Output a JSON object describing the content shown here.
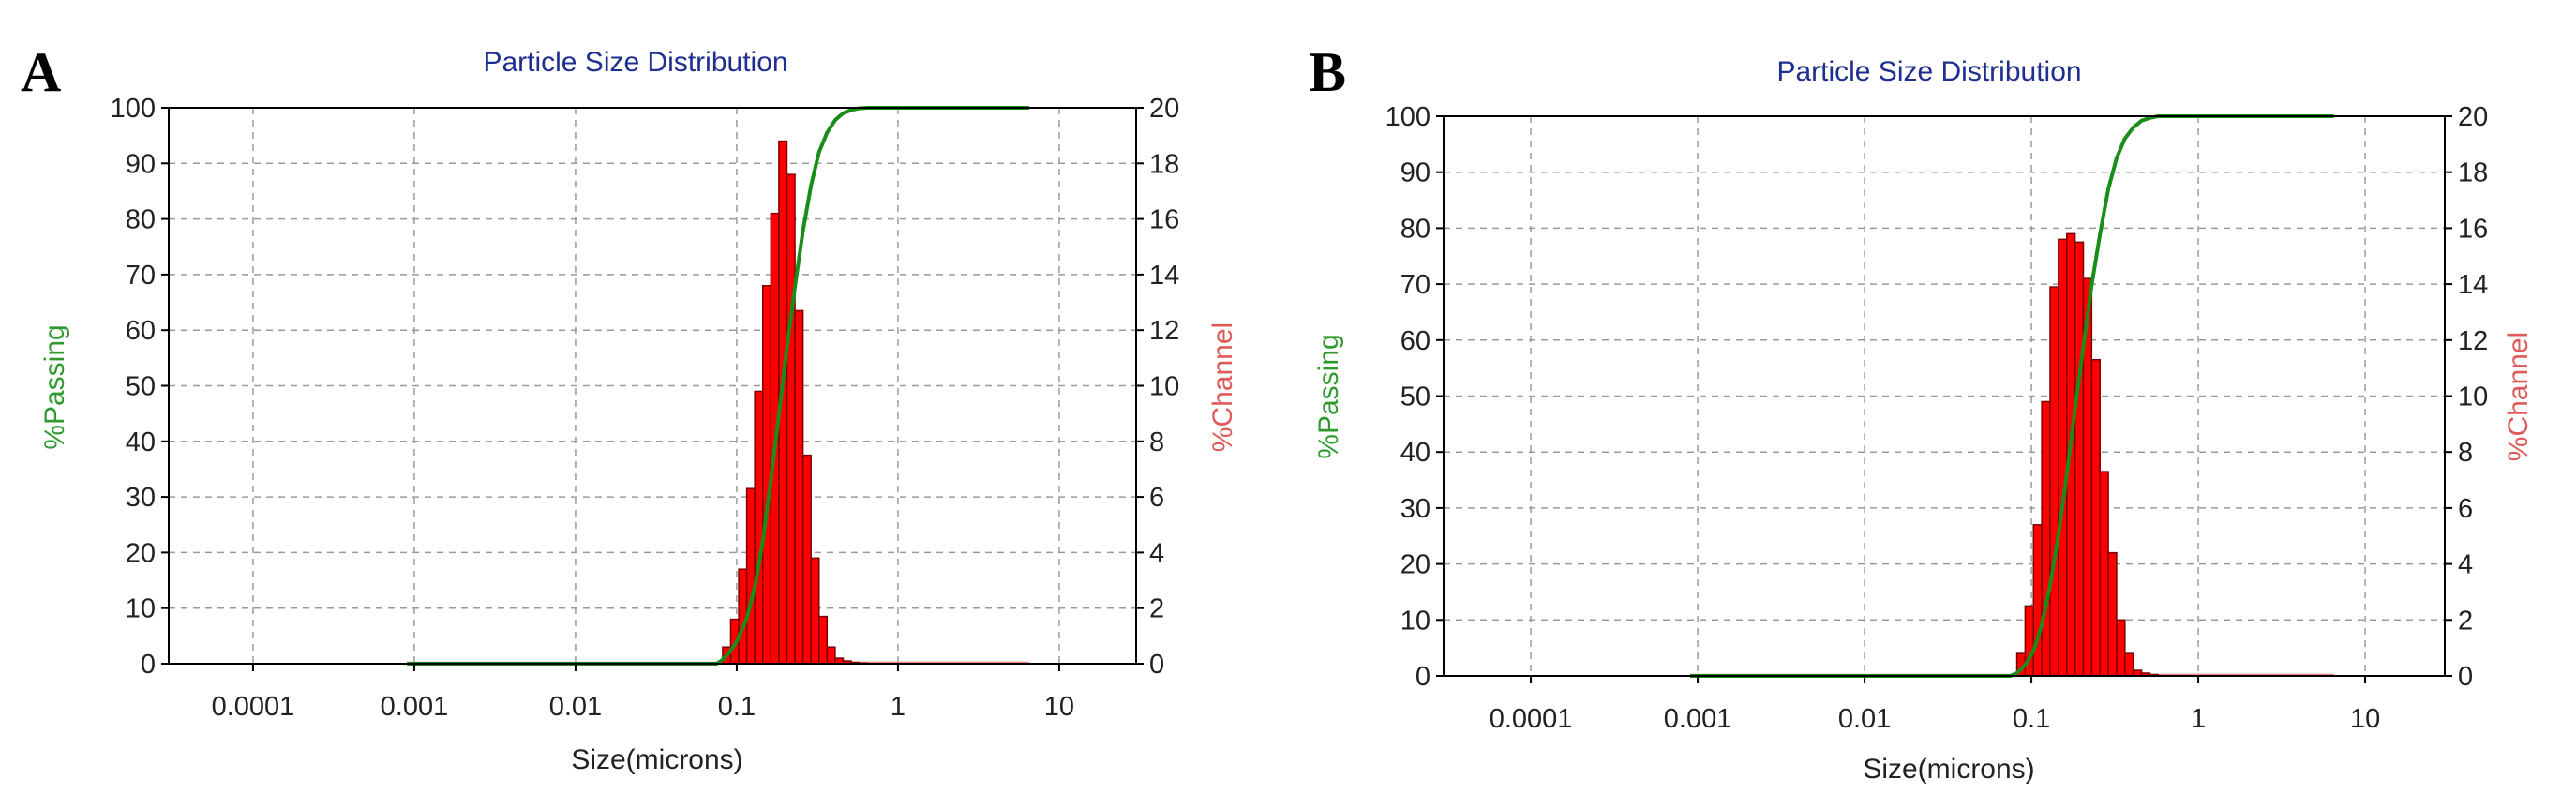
{
  "chart_data": [
    {
      "type": "bar",
      "panel_label": "A",
      "title": "Particle Size Distribution",
      "xlabel": "Size(microns)",
      "ylabel_left": "%Passing",
      "ylabel_right": "%Channel",
      "x_scale": "log",
      "xlim": [
        3e-05,
        30
      ],
      "x_ticks": [
        0.0001,
        0.001,
        0.01,
        0.1,
        1,
        10
      ],
      "x_tick_labels": [
        "0.0001",
        "0.001",
        "0.01",
        "0.1",
        "1",
        "10"
      ],
      "ylim_left": [
        0,
        100
      ],
      "y_ticks_left": [
        0,
        10,
        20,
        30,
        40,
        50,
        60,
        70,
        80,
        90,
        100
      ],
      "ylim_right": [
        0,
        20
      ],
      "y_ticks_right": [
        0,
        2,
        4,
        6,
        8,
        10,
        12,
        14,
        16,
        18,
        20
      ],
      "grid": true,
      "colors": {
        "channel": "#ff0000",
        "passing": "#1a8c1a",
        "frame": "#000000",
        "grid": "#9a9a9a",
        "zero_channel": "#f08080"
      },
      "channel_series": {
        "name": "%Channel",
        "axis": "right",
        "bin_edges": [
          0.0818,
          0.0917,
          0.1029,
          0.1154,
          0.1294,
          0.1451,
          0.1628,
          0.1826,
          0.2048,
          0.2297,
          0.2576,
          0.2889,
          0.324,
          0.3634,
          0.4076,
          0.4572,
          0.5128,
          0.5751,
          0.6451
        ],
        "values": [
          0.6,
          1.6,
          3.4,
          6.3,
          9.8,
          13.6,
          16.2,
          18.8,
          17.6,
          12.7,
          7.5,
          3.8,
          1.7,
          0.6,
          0.2,
          0.1,
          0.05,
          0.02
        ]
      },
      "passing_series": {
        "name": "%Passing",
        "axis": "left",
        "x": [
          0.0009,
          0.01,
          0.05,
          0.075,
          0.08,
          0.09,
          0.1,
          0.115,
          0.13,
          0.145,
          0.163,
          0.183,
          0.205,
          0.23,
          0.258,
          0.289,
          0.324,
          0.363,
          0.408,
          0.457,
          0.513,
          0.575,
          0.645,
          0.75,
          0.9,
          6.5
        ],
        "y": [
          0,
          0,
          0,
          0,
          0.5,
          2,
          4,
          8,
          14,
          22,
          33,
          45,
          57,
          68,
          78,
          86,
          92,
          95.5,
          97.8,
          99,
          99.6,
          99.9,
          100,
          100,
          100,
          100
        ]
      },
      "channel_zero_line": {
        "x": [
          0.0009,
          6.5
        ],
        "y": [
          0,
          0
        ]
      }
    },
    {
      "type": "bar",
      "panel_label": "B",
      "title": "Particle Size Distribution",
      "xlabel": "Size(microns)",
      "ylabel_left": "%Passing",
      "ylabel_right": "%Channel",
      "x_scale": "log",
      "xlim": [
        3e-05,
        30
      ],
      "x_ticks": [
        0.0001,
        0.001,
        0.01,
        0.1,
        1,
        10
      ],
      "x_tick_labels": [
        "0.0001",
        "0.001",
        "0.01",
        "0.1",
        "1",
        "10"
      ],
      "ylim_left": [
        0,
        100
      ],
      "y_ticks_left": [
        0,
        10,
        20,
        30,
        40,
        50,
        60,
        70,
        80,
        90,
        100
      ],
      "ylim_right": [
        0,
        20
      ],
      "y_ticks_right": [
        0,
        2,
        4,
        6,
        8,
        10,
        12,
        14,
        16,
        18,
        20
      ],
      "grid": true,
      "colors": {
        "channel": "#ff0000",
        "passing": "#1a8c1a",
        "frame": "#000000",
        "grid": "#9a9a9a",
        "zero_channel": "#f08080"
      },
      "channel_series": {
        "name": "%Channel",
        "axis": "right",
        "bin_edges": [
          0.0818,
          0.0917,
          0.1029,
          0.1154,
          0.1294,
          0.1451,
          0.1628,
          0.1826,
          0.2048,
          0.2297,
          0.2576,
          0.2889,
          0.324,
          0.3634,
          0.4076,
          0.4572,
          0.5128,
          0.5751
        ],
        "values": [
          0.8,
          2.5,
          5.4,
          9.8,
          13.9,
          15.6,
          15.8,
          15.5,
          14.2,
          11.3,
          7.3,
          4.4,
          2.0,
          0.8,
          0.2,
          0.1,
          0.05
        ]
      },
      "passing_series": {
        "name": "%Passing",
        "axis": "left",
        "x": [
          0.0009,
          0.01,
          0.05,
          0.075,
          0.082,
          0.092,
          0.103,
          0.115,
          0.129,
          0.145,
          0.163,
          0.183,
          0.205,
          0.23,
          0.258,
          0.289,
          0.324,
          0.363,
          0.408,
          0.457,
          0.513,
          0.575,
          0.65,
          0.8,
          6.5
        ],
        "y": [
          0,
          0,
          0,
          0,
          0.5,
          2,
          4.5,
          9,
          16,
          25,
          36,
          48,
          59,
          70,
          79,
          87,
          92.5,
          96,
          98,
          99.2,
          99.7,
          100,
          100,
          100,
          100
        ]
      },
      "channel_zero_line": {
        "x": [
          0.0009,
          6.5
        ],
        "y": [
          0,
          0
        ]
      }
    }
  ]
}
